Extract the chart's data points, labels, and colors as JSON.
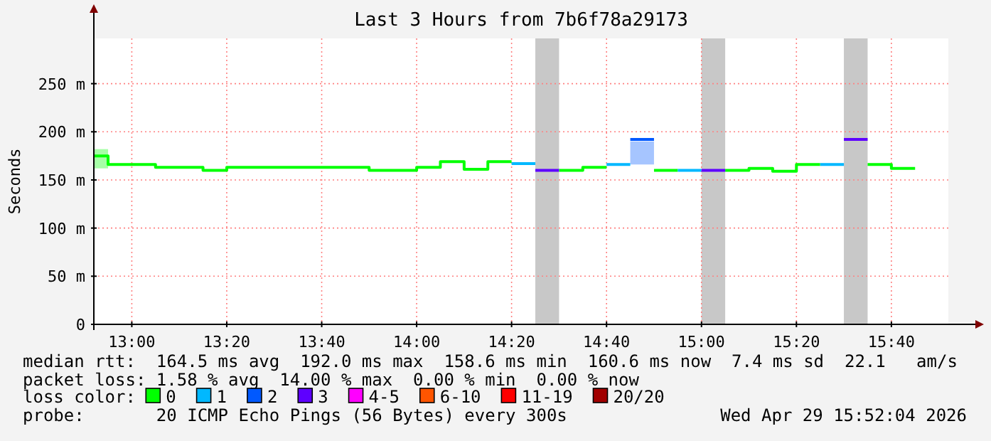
{
  "chart_data": {
    "type": "line",
    "title": "Last 3 Hours from 7b6f78a29173",
    "ylabel": "Seconds",
    "series": [
      {
        "name": "0",
        "color": "#00ff00",
        "x": [
          12.8667,
          12.9167,
          12.9167,
          13.0833,
          13.0833,
          13.25,
          13.25,
          13.3333,
          13.3333,
          13.8333,
          13.8333,
          14.0,
          14.0,
          14.0833,
          14.0833,
          14.1667,
          14.1667,
          14.25,
          14.25,
          14.3333,
          null,
          14.5,
          14.5833,
          14.5833,
          14.6667,
          null,
          14.8333,
          14.9167,
          null,
          15.0833,
          15.1667,
          15.1667,
          15.25,
          15.25,
          15.3333,
          15.3333,
          15.4167,
          null,
          15.5833,
          15.6667,
          15.6667,
          15.75
        ],
        "values": [
          175,
          175,
          166,
          166,
          163,
          163,
          160,
          160,
          163,
          163,
          160,
          160,
          163,
          163,
          169,
          169,
          161,
          161,
          169,
          169,
          null,
          160,
          160,
          163,
          163,
          null,
          160,
          160,
          null,
          160,
          160,
          162,
          162,
          159,
          159,
          166,
          166,
          null,
          166,
          166,
          162,
          162
        ],
        "lower": [
          162,
          162,
          null,
          null,
          null,
          null,
          null,
          null,
          null,
          null,
          null,
          null,
          null,
          null,
          null,
          null,
          null,
          null,
          null,
          null,
          null,
          null,
          null,
          null,
          null,
          null,
          null,
          null,
          null,
          null,
          null,
          null,
          null,
          null,
          null,
          null,
          null,
          null,
          null,
          null,
          null,
          null
        ],
        "upper": [
          182,
          182,
          null,
          null,
          null,
          null,
          null,
          null,
          null,
          null,
          null,
          null,
          null,
          null,
          null,
          null,
          null,
          null,
          null,
          null,
          null,
          null,
          null,
          null,
          null,
          null,
          null,
          null,
          null,
          null,
          null,
          null,
          null,
          null,
          null,
          null,
          null,
          null,
          null,
          null,
          null,
          null
        ]
      },
      {
        "name": "1",
        "color": "#00b8ff",
        "x": [
          14.3333,
          14.4167,
          null,
          14.6667,
          14.75,
          null,
          14.9167,
          15.0,
          null,
          15.4167,
          15.5
        ],
        "values": [
          167,
          167,
          null,
          166,
          166,
          null,
          160,
          160,
          null,
          166,
          166
        ]
      },
      {
        "name": "2",
        "color": "#0059ff",
        "x": [
          14.75,
          14.8333
        ],
        "values": [
          192,
          192
        ],
        "lower": [
          166,
          166
        ],
        "upper": [
          190,
          190
        ]
      },
      {
        "name": "3",
        "color": "#5e00ff",
        "x": [
          14.4167,
          14.5,
          null,
          15.0,
          15.0833,
          null,
          15.5,
          15.5833
        ],
        "values": [
          160,
          160,
          null,
          160,
          160,
          null,
          192,
          192
        ]
      },
      {
        "name": "4-5",
        "color": "#ff00ff"
      },
      {
        "name": "6-10",
        "color": "#ff5500"
      },
      {
        "name": "11-19",
        "color": "#ff0000"
      },
      {
        "name": "20/20",
        "color": "#a10000"
      }
    ],
    "bands": [
      {
        "axis": "x",
        "from": 14.4167,
        "to": 14.5,
        "color": "#c8c8c8"
      },
      {
        "axis": "x",
        "from": 15.0,
        "to": 15.0833,
        "color": "#c8c8c8"
      },
      {
        "axis": "x",
        "from": 15.5,
        "to": 15.5833,
        "color": "#c8c8c8"
      }
    ],
    "xlim": [
      12.8667,
      15.8667
    ],
    "xticks": [
      {
        "value": 13,
        "label": "13:00"
      },
      {
        "value": 13.3333,
        "label": "13:20"
      },
      {
        "value": 13.6667,
        "label": "13:40"
      },
      {
        "value": 14,
        "label": "14:00"
      },
      {
        "value": 14.3333,
        "label": "14:20"
      },
      {
        "value": 14.6667,
        "label": "14:40"
      },
      {
        "value": 15,
        "label": "15:00"
      },
      {
        "value": 15.3333,
        "label": "15:20"
      },
      {
        "value": 15.6667,
        "label": "15:40"
      }
    ],
    "ylim": [
      0,
      297
    ],
    "yticks": [
      0,
      {
        "value": 50,
        "label": "50 m"
      },
      {
        "value": 100,
        "label": "100 m"
      },
      {
        "value": 150,
        "label": "150 m"
      },
      {
        "value": 200,
        "label": "200 m"
      },
      {
        "value": 250,
        "label": "250 m"
      }
    ],
    "grid": true,
    "legend": "bottom",
    "legend_title": "loss color:",
    "annotations": [
      "median rtt:  164.5 ms avg  192.0 ms max  158.6 ms min  160.6 ms now  7.4 ms sd  22.1   am/s",
      "packet loss: 1.58 % avg  14.00 % max  0.00 % min  0.00 % now",
      "probe:       20 ICMP Echo Pings (56 Bytes) every 300s",
      "Wed Apr 29 15:52:04 2026"
    ]
  }
}
